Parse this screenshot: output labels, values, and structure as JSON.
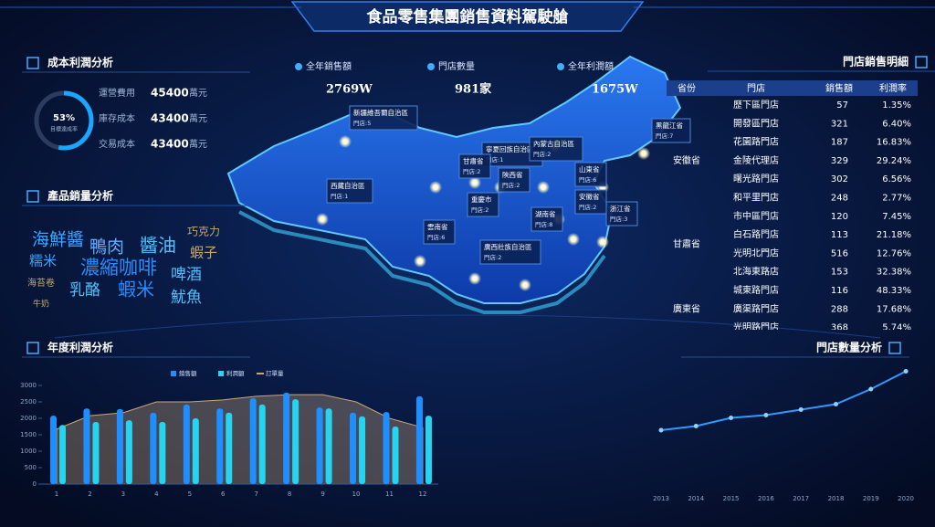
{
  "header": {
    "title": "食品零售集團銷售資料駕駛艙"
  },
  "cost_panel": {
    "title": "成本利潤分析",
    "gauge": {
      "value": 53,
      "label": "53%",
      "caption": "目標達成率"
    },
    "items": [
      {
        "name": "運營費用",
        "value": "45400",
        "unit": "萬元"
      },
      {
        "name": "庫存成本",
        "value": "43400",
        "unit": "萬元"
      },
      {
        "name": "交易成本",
        "value": "43400",
        "unit": "萬元"
      }
    ]
  },
  "kpis": [
    {
      "label": "全年銷售額",
      "value": "2769W"
    },
    {
      "label": "門店數量",
      "value": "981家"
    },
    {
      "label": "全年利潤額",
      "value": "1675W"
    }
  ],
  "word_cloud": {
    "title": "產品銷量分析",
    "words": [
      {
        "text": "海鮮醬",
        "color": "#3fa3ff"
      },
      {
        "text": "鴨肉",
        "color": "#5fb0ff"
      },
      {
        "text": "醬油",
        "color": "#4ec2ff"
      },
      {
        "text": "巧克力",
        "color": "#c9a86b"
      },
      {
        "text": "蝦子",
        "color": "#c9a86b"
      },
      {
        "text": "糯米",
        "color": "#3aa3ff"
      },
      {
        "text": "濃縮咖啡",
        "color": "#2a8cff"
      },
      {
        "text": "啤酒",
        "color": "#4ec2ff"
      },
      {
        "text": "海苔卷",
        "color": "#c9a86b"
      },
      {
        "text": "乳酪",
        "color": "#4ec2ff"
      },
      {
        "text": "蝦米",
        "color": "#2a8cff"
      },
      {
        "text": "魷魚",
        "color": "#4ec2ff"
      },
      {
        "text": "牛奶",
        "color": "#c9a86b"
      }
    ]
  },
  "map": {
    "labels": [
      {
        "name": "新疆維吾爾自治區",
        "stores": "門店:5"
      },
      {
        "name": "西藏自治區",
        "stores": "門店:1"
      },
      {
        "name": "寧夏回族自治區",
        "stores": "門店:1"
      },
      {
        "name": "內蒙古自治區",
        "stores": "門店:2"
      },
      {
        "name": "甘肅省",
        "stores": "門店:2"
      },
      {
        "name": "陝西省",
        "stores": "門店:2"
      },
      {
        "name": "山東省",
        "stores": "門店:6"
      },
      {
        "name": "黑龍江省",
        "stores": "門店:7"
      },
      {
        "name": "重慶市",
        "stores": "門店:2"
      },
      {
        "name": "湖南省",
        "stores": "門店:8"
      },
      {
        "name": "安徽省",
        "stores": "門店:2"
      },
      {
        "name": "浙江省",
        "stores": "門店:3"
      },
      {
        "name": "雲南省",
        "stores": "門店:6"
      },
      {
        "name": "廣西壯族自治區",
        "stores": "門店:2"
      }
    ]
  },
  "table": {
    "title": "門店銷售明細",
    "headers": [
      "省份",
      "門店",
      "銷售額",
      "利潤率"
    ],
    "groups": [
      {
        "rows": [
          [
            "歷下區門店",
            "57",
            "1.35%"
          ]
        ]
      },
      {
        "province": "安徽省",
        "rows": [
          [
            "開發區門店",
            "321",
            "6.40%"
          ],
          [
            "花園路門店",
            "187",
            "16.83%"
          ],
          [
            "金陵代理店",
            "329",
            "29.24%"
          ],
          [
            "曙光路門店",
            "302",
            "6.56%"
          ],
          [
            "和平里門店",
            "248",
            "2.77%"
          ]
        ]
      },
      {
        "province": "甘肅省",
        "rows": [
          [
            "市中區門店",
            "120",
            "7.45%"
          ],
          [
            "白石路門店",
            "113",
            "21.18%"
          ],
          [
            "光明北門店",
            "516",
            "12.76%"
          ],
          [
            "北海東路店",
            "153",
            "32.38%"
          ]
        ]
      },
      {
        "province": "廣東省",
        "rows": [
          [
            "城東路門店",
            "116",
            "48.33%"
          ],
          [
            "廣渠路門店",
            "288",
            "17.68%"
          ],
          [
            "光明路門店",
            "368",
            "5.74%"
          ]
        ]
      }
    ]
  },
  "profit_chart": {
    "type": "bar",
    "title": "年度利潤分析",
    "categories": [
      "1",
      "2",
      "3",
      "4",
      "5",
      "6",
      "7",
      "8",
      "9",
      "10",
      "11",
      "12"
    ],
    "series": [
      {
        "name": "銷售額",
        "color": "#1f8fff",
        "values": [
          2080,
          2300,
          2280,
          2170,
          2420,
          2300,
          2610,
          2780,
          2330,
          2170,
          2190,
          2670
        ]
      },
      {
        "name": "利潤額",
        "color": "#27d4f0",
        "values": [
          1800,
          1890,
          1940,
          1890,
          2000,
          2170,
          2420,
          2580,
          2300,
          2060,
          1750,
          2080
        ]
      },
      {
        "name": "訂單量",
        "color": "#c8a77a",
        "type": "area",
        "values": [
          1670,
          2080,
          2170,
          2500,
          2500,
          2560,
          2670,
          2720,
          2720,
          2500,
          2000,
          1720
        ]
      }
    ],
    "ylim": [
      0,
      3000
    ],
    "yticks": [
      0,
      500,
      1000,
      1500,
      2000,
      2500,
      3000
    ]
  },
  "store_chart": {
    "type": "line",
    "title": "門店數量分析",
    "x": [
      "2013",
      "2014",
      "2015",
      "2016",
      "2017",
      "2018",
      "2019",
      "2020"
    ],
    "values": [
      46,
      49,
      55,
      57,
      61,
      65,
      76,
      89
    ],
    "color": "#2f9bff",
    "ylim": [
      0,
      100
    ]
  }
}
